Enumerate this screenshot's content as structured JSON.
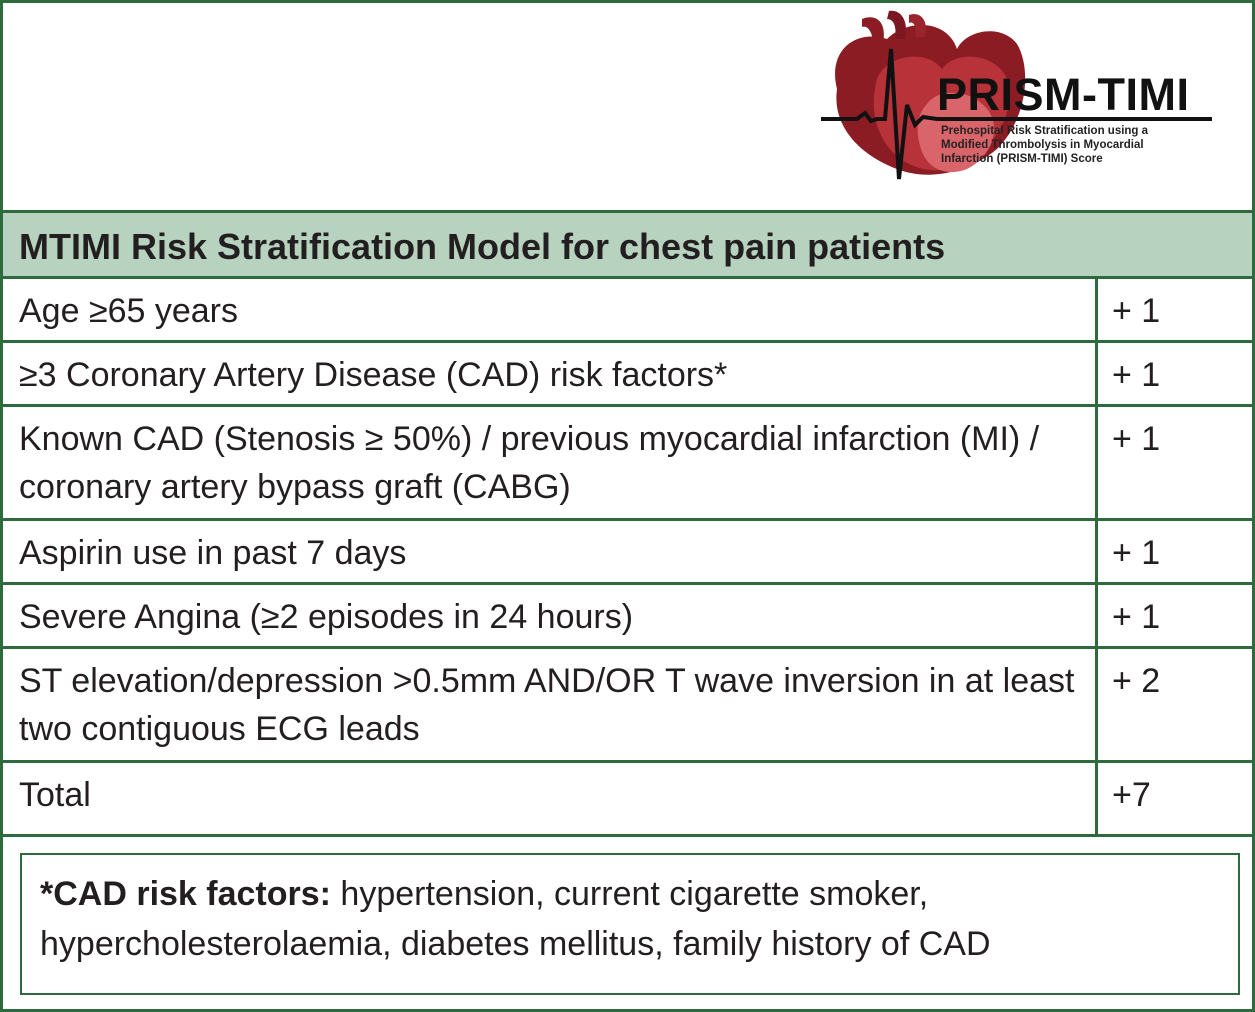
{
  "logo": {
    "title": "PRISM-TIMI",
    "subtitle_lines": [
      "Prehospital Risk Stratification using a",
      "Modified Thrombolysis in Myocardial",
      "Infarction (PRISM-TIMI) Score"
    ],
    "icon": "heart-ecg-icon"
  },
  "table": {
    "header": "MTIMI Risk Stratification Model for chest pain patients",
    "rows": [
      {
        "criterion": "Age ≥65 years",
        "points": "+ 1"
      },
      {
        "criterion": "≥3 Coronary Artery Disease (CAD) risk factors*",
        "points": "+ 1"
      },
      {
        "criterion": "Known CAD (Stenosis ≥ 50%) / previous myocardial infarction (MI) / coronary artery bypass graft (CABG)",
        "points": "+ 1"
      },
      {
        "criterion": "Aspirin use in past 7 days",
        "points": "+ 1"
      },
      {
        "criterion": "Severe Angina (≥2 episodes in 24 hours)",
        "points": "+ 1"
      },
      {
        "criterion": "ST elevation/depression >0.5mm AND/OR T wave inversion in at least two contiguous ECG leads",
        "points": "+ 2"
      },
      {
        "criterion": "Total",
        "points": "+7"
      }
    ]
  },
  "footnote": {
    "label": "*CAD risk factors:",
    "text": " hypertension, current cigarette smoker, hypercholesterolaemia, diabetes mellitus, family history of CAD"
  },
  "colors": {
    "border": "#2e6b3c",
    "header_band": "#b7d3c0",
    "heart_dark": "#8c1c24",
    "heart_mid": "#b8323a",
    "heart_light": "#d9646a"
  }
}
